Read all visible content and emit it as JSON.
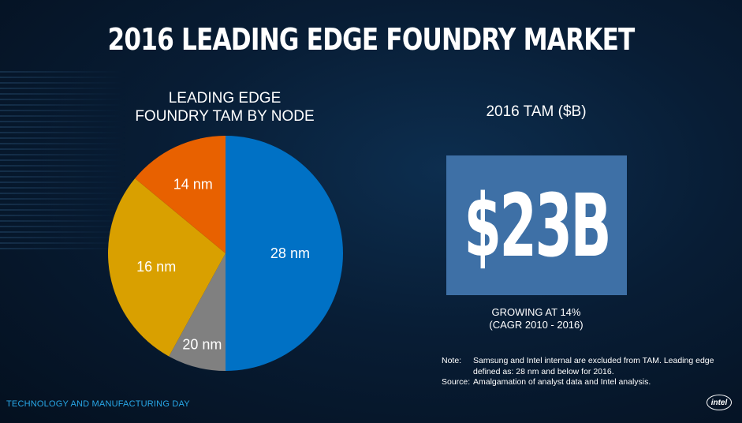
{
  "title": "2016 LEADING EDGE FOUNDRY MARKET",
  "chart_data": {
    "type": "pie",
    "title_lines": [
      "LEADING EDGE",
      "FOUNDRY TAM BY NODE"
    ],
    "slices": [
      {
        "label": "28 nm",
        "value": 50,
        "color": "#0071c5"
      },
      {
        "label": "20 nm",
        "value": 8,
        "color": "#808080"
      },
      {
        "label": "16 nm",
        "value": 28,
        "color": "#d9a000"
      },
      {
        "label": "14 nm",
        "value": 14,
        "color": "#e86100"
      }
    ]
  },
  "tam": {
    "heading": "2016 TAM ($B)",
    "value": "$23B",
    "growth_line1": "GROWING AT 14%",
    "growth_line2": "(CAGR 2010 - 2016)"
  },
  "notes": [
    {
      "key": "Note:",
      "text": "Samsung and Intel internal are excluded from TAM. Leading edge defined as:  28 nm and below for 2016."
    },
    {
      "key": "Source:",
      "text": "Amalgamation of analyst data and Intel analysis."
    }
  ],
  "footer": "TECHNOLOGY AND MANUFACTURING DAY",
  "logo_text": "intel"
}
